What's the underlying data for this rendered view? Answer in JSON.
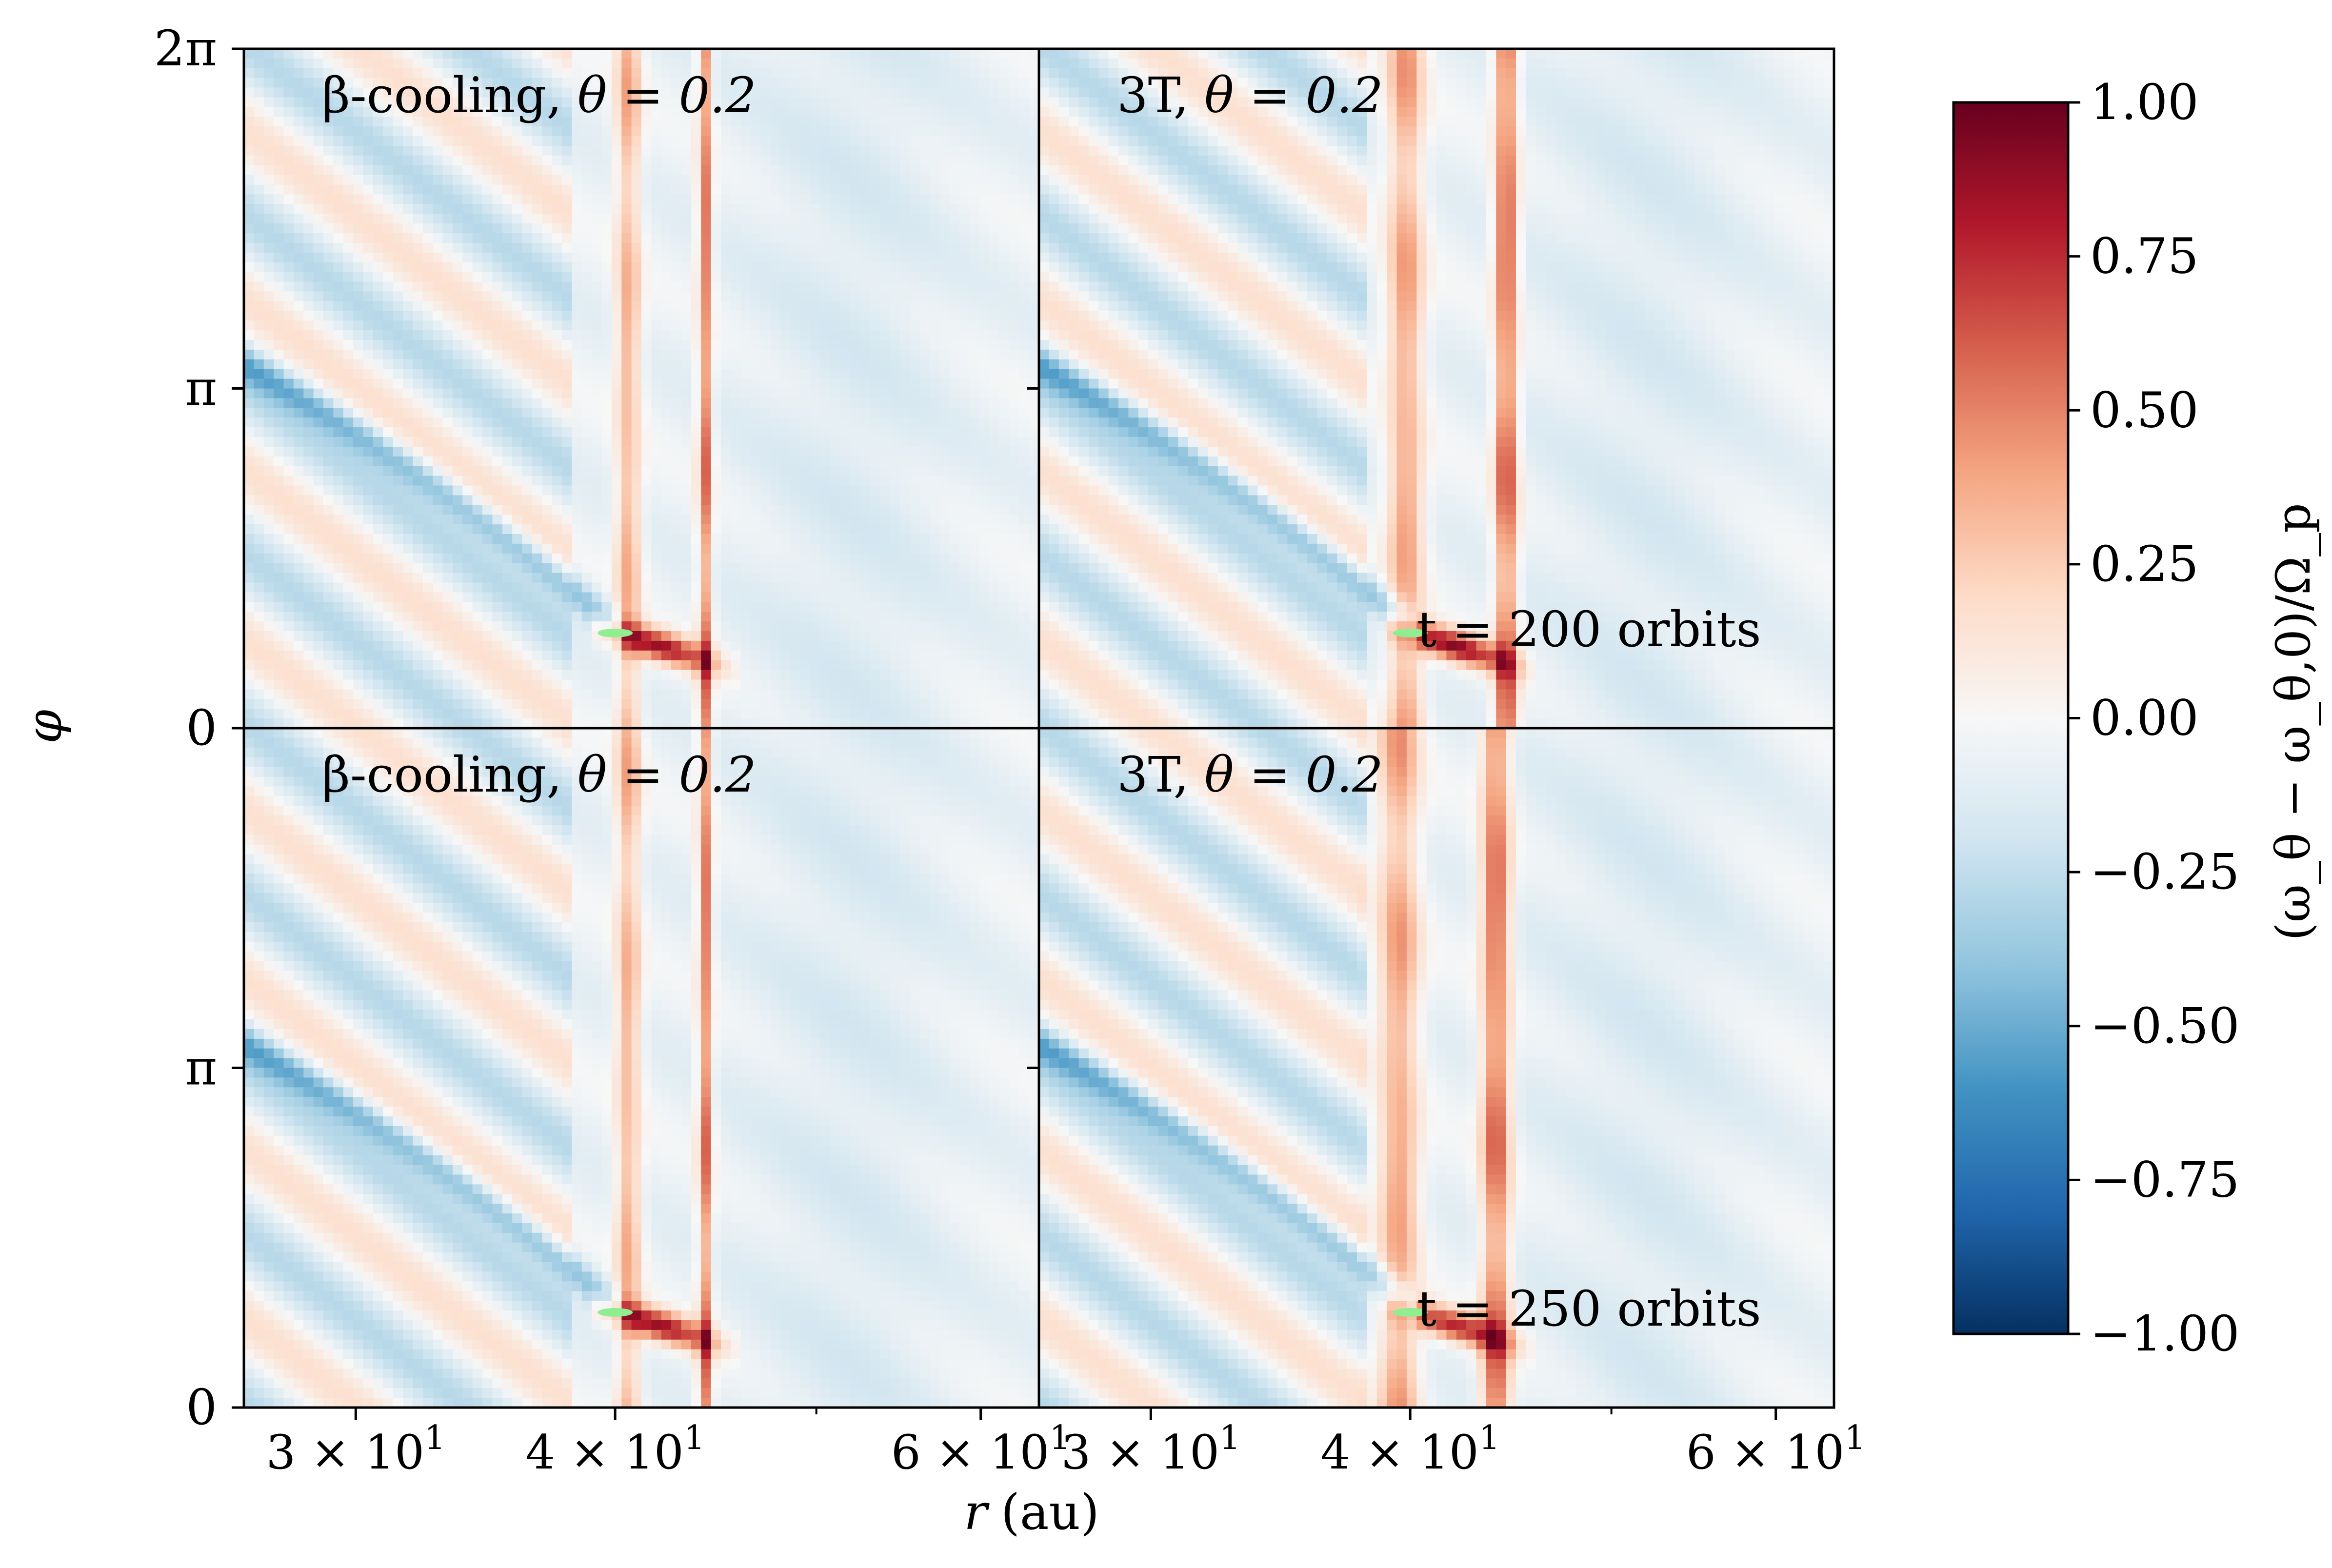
{
  "chart_data": {
    "type": "heatmap",
    "figure": {
      "xlabel_var": "r",
      "xlabel_unit": "(au)",
      "ylabel": "φ",
      "colorbar_label": "(ω_θ − ω_θ,0)/Ω_p",
      "x_scale": "log",
      "xlim": [
        26.5,
        64
      ],
      "x_ticks": [
        {
          "value": 30,
          "mant": "3",
          "times": "×",
          "base": "10",
          "exp": "1"
        },
        {
          "value": 40,
          "mant": "4",
          "times": "×",
          "base": "10",
          "exp": "1"
        },
        {
          "value": 60,
          "mant": "6",
          "times": "×",
          "base": "10",
          "exp": "1"
        }
      ],
      "ylim": [
        0,
        6.2832
      ],
      "y_ticks": [
        {
          "value": 0,
          "label": "0"
        },
        {
          "value": 3.1416,
          "label": "π"
        },
        {
          "value": 6.2832,
          "label": "2π"
        }
      ],
      "colormap": "RdBu_r",
      "color_range": [
        -1.0,
        1.0
      ],
      "colorbar_ticks": [
        {
          "value": 1.0,
          "label": "1.00"
        },
        {
          "value": 0.75,
          "label": "0.75"
        },
        {
          "value": 0.5,
          "label": "0.50"
        },
        {
          "value": 0.25,
          "label": "0.25"
        },
        {
          "value": 0.0,
          "label": "0.00"
        },
        {
          "value": -0.25,
          "label": "−0.25"
        },
        {
          "value": -0.5,
          "label": "−0.50"
        },
        {
          "value": -0.75,
          "label": "−0.75"
        },
        {
          "value": -1.0,
          "label": "−1.00"
        }
      ],
      "colors": {
        "planet_marker": "#90ee90",
        "frame": "#000000"
      }
    },
    "panels": [
      {
        "id": "beta_200",
        "row": 0,
        "col": 0,
        "model": "β-cooling",
        "theta_label": "θ = 0.2",
        "time_label": "",
        "planet": {
          "r": 40,
          "phi": 0.88
        },
        "ridges": [
          {
            "r": 40.6,
            "w": 0.55,
            "amp": 0.45
          },
          {
            "r": 44.2,
            "w": 0.35,
            "amp": 0.65
          }
        ],
        "spiral": {
          "r0": 40.5,
          "phi0": 0.85,
          "amp": 0.9
        }
      },
      {
        "id": "3t_200",
        "row": 0,
        "col": 1,
        "model": "3T",
        "theta_label": "θ = 0.2",
        "time_label": "t = 200 orbits",
        "planet": {
          "r": 40,
          "phi": 0.88
        },
        "ridges": [
          {
            "r": 39.8,
            "w": 0.8,
            "amp": 0.5
          },
          {
            "r": 44.5,
            "w": 0.55,
            "amp": 0.75
          }
        ],
        "spiral": {
          "r0": 40.5,
          "phi0": 0.85,
          "amp": 0.95
        }
      },
      {
        "id": "beta_250",
        "row": 1,
        "col": 0,
        "model": "β-cooling",
        "theta_label": "θ = 0.2",
        "time_label": "",
        "planet": {
          "r": 40,
          "phi": 0.88
        },
        "ridges": [
          {
            "r": 40.6,
            "w": 0.55,
            "amp": 0.45
          },
          {
            "r": 44.2,
            "w": 0.35,
            "amp": 0.65
          }
        ],
        "spiral": {
          "r0": 40.5,
          "phi0": 0.85,
          "amp": 0.9
        }
      },
      {
        "id": "3t_250",
        "row": 1,
        "col": 1,
        "model": "3T",
        "theta_label": "θ = 0.2",
        "time_label": "t = 250 orbits",
        "planet": {
          "r": 40,
          "phi": 0.88
        },
        "ridges": [
          {
            "r": 39.5,
            "w": 0.9,
            "amp": 0.5
          },
          {
            "r": 44.0,
            "w": 0.7,
            "amp": 0.7
          }
        ],
        "spiral": {
          "r0": 40.5,
          "phi0": 0.85,
          "amp": 0.8
        }
      }
    ]
  }
}
